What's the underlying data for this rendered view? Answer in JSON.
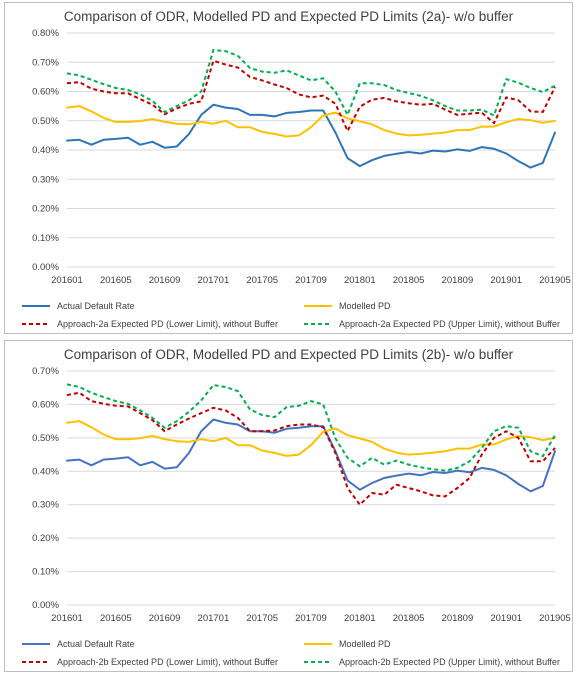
{
  "chart_data": [
    {
      "type": "line",
      "title": "Comparison of ODR, Modelled PD and Expected PD Limits (2a)- w/o buffer",
      "xlabel": "",
      "ylabel": "",
      "x_tick_labels": [
        "201601",
        "201605",
        "201609",
        "201701",
        "201705",
        "201709",
        "201801",
        "201805",
        "201809",
        "201901",
        "201905"
      ],
      "y_tick_labels": [
        "0.00%",
        "0.10%",
        "0.20%",
        "0.30%",
        "0.40%",
        "0.50%",
        "0.60%",
        "0.70%",
        "0.80%"
      ],
      "ylim": [
        0,
        0.8
      ],
      "y_unit": "%",
      "x_count": 41,
      "grid": "horizontal",
      "legend_position": "bottom",
      "series": [
        {
          "name": "Actual Default Rate",
          "color": "#2e75b6",
          "style": "solid",
          "values": [
            0.432,
            0.435,
            0.418,
            0.435,
            0.438,
            0.442,
            0.418,
            0.428,
            0.408,
            0.412,
            0.455,
            0.52,
            0.555,
            0.545,
            0.54,
            0.52,
            0.52,
            0.515,
            0.527,
            0.53,
            0.535,
            0.535,
            0.46,
            0.372,
            0.345,
            0.365,
            0.38,
            0.387,
            0.393,
            0.388,
            0.398,
            0.395,
            0.402,
            0.397,
            0.41,
            0.404,
            0.388,
            0.362,
            0.34,
            0.356,
            0.46
          ]
        },
        {
          "name": "Modelled PD",
          "color": "#ffc000",
          "style": "solid",
          "values": [
            0.545,
            0.55,
            0.532,
            0.51,
            0.496,
            0.496,
            0.499,
            0.506,
            0.496,
            0.49,
            0.488,
            0.496,
            0.49,
            0.5,
            0.478,
            0.478,
            0.462,
            0.455,
            0.446,
            0.45,
            0.478,
            0.518,
            0.528,
            0.508,
            0.498,
            0.488,
            0.468,
            0.456,
            0.45,
            0.452,
            0.456,
            0.46,
            0.468,
            0.468,
            0.48,
            0.48,
            0.495,
            0.506,
            0.502,
            0.493,
            0.5
          ]
        },
        {
          "name": "Approach-2a Expected PD (Lower Limit), without Buffer",
          "color": "#c00000",
          "style": "dashed",
          "values": [
            0.628,
            0.632,
            0.61,
            0.6,
            0.594,
            0.594,
            0.574,
            0.555,
            0.522,
            0.542,
            0.558,
            0.566,
            0.705,
            0.692,
            0.682,
            0.65,
            0.638,
            0.624,
            0.612,
            0.59,
            0.58,
            0.586,
            0.558,
            0.465,
            0.548,
            0.572,
            0.578,
            0.566,
            0.56,
            0.555,
            0.558,
            0.538,
            0.52,
            0.524,
            0.528,
            0.492,
            0.58,
            0.57,
            0.532,
            0.53,
            0.615
          ]
        },
        {
          "name": "Approach-2a Expected PD (Upper Limit), without Buffer",
          "color": "#00b050",
          "style": "dashed",
          "values": [
            0.662,
            0.655,
            0.64,
            0.625,
            0.612,
            0.605,
            0.59,
            0.568,
            0.53,
            0.55,
            0.57,
            0.6,
            0.742,
            0.738,
            0.722,
            0.68,
            0.668,
            0.664,
            0.672,
            0.655,
            0.638,
            0.645,
            0.6,
            0.52,
            0.628,
            0.628,
            0.622,
            0.605,
            0.595,
            0.585,
            0.57,
            0.55,
            0.535,
            0.535,
            0.538,
            0.518,
            0.642,
            0.63,
            0.612,
            0.598,
            0.62
          ]
        }
      ]
    },
    {
      "type": "line",
      "title": "Comparison of ODR, Modelled PD and Expected PD Limits (2b)- w/o buffer",
      "xlabel": "",
      "ylabel": "",
      "x_tick_labels": [
        "201601",
        "201605",
        "201609",
        "201701",
        "201705",
        "201709",
        "201801",
        "201805",
        "201809",
        "201901",
        "201905"
      ],
      "y_tick_labels": [
        "0.00%",
        "0.10%",
        "0.20%",
        "0.30%",
        "0.40%",
        "0.50%",
        "0.60%",
        "0.70%"
      ],
      "ylim": [
        0,
        0.7
      ],
      "y_unit": "%",
      "x_count": 41,
      "grid": "horizontal",
      "legend_position": "bottom",
      "series": [
        {
          "name": "Actual Default Rate",
          "color": "#4472c4",
          "style": "solid",
          "values": [
            0.432,
            0.435,
            0.418,
            0.435,
            0.438,
            0.442,
            0.418,
            0.428,
            0.408,
            0.412,
            0.455,
            0.52,
            0.555,
            0.545,
            0.54,
            0.52,
            0.52,
            0.515,
            0.527,
            0.53,
            0.535,
            0.535,
            0.46,
            0.372,
            0.345,
            0.365,
            0.38,
            0.387,
            0.393,
            0.388,
            0.398,
            0.395,
            0.402,
            0.397,
            0.41,
            0.404,
            0.388,
            0.362,
            0.34,
            0.356,
            0.46
          ]
        },
        {
          "name": "Modelled PD",
          "color": "#ffc000",
          "style": "solid",
          "values": [
            0.545,
            0.55,
            0.532,
            0.51,
            0.496,
            0.496,
            0.499,
            0.506,
            0.496,
            0.49,
            0.488,
            0.496,
            0.49,
            0.5,
            0.478,
            0.478,
            0.462,
            0.455,
            0.446,
            0.45,
            0.478,
            0.518,
            0.528,
            0.508,
            0.498,
            0.488,
            0.468,
            0.456,
            0.45,
            0.452,
            0.456,
            0.46,
            0.468,
            0.468,
            0.48,
            0.48,
            0.495,
            0.506,
            0.502,
            0.493,
            0.5
          ]
        },
        {
          "name": "Approach-2b Expected PD (Lower Limit), without Buffer",
          "color": "#c00000",
          "style": "dashed",
          "values": [
            0.628,
            0.635,
            0.61,
            0.602,
            0.596,
            0.594,
            0.574,
            0.553,
            0.52,
            0.54,
            0.558,
            0.574,
            0.59,
            0.582,
            0.56,
            0.52,
            0.52,
            0.522,
            0.535,
            0.54,
            0.54,
            0.532,
            0.455,
            0.35,
            0.3,
            0.335,
            0.33,
            0.36,
            0.35,
            0.34,
            0.328,
            0.325,
            0.35,
            0.38,
            0.45,
            0.5,
            0.52,
            0.5,
            0.43,
            0.43,
            0.47
          ]
        },
        {
          "name": "Approach-2b Expected PD (Upper Limit), without Buffer",
          "color": "#00b050",
          "style": "dashed",
          "values": [
            0.66,
            0.652,
            0.635,
            0.622,
            0.61,
            0.602,
            0.582,
            0.56,
            0.53,
            0.55,
            0.578,
            0.612,
            0.658,
            0.652,
            0.64,
            0.585,
            0.568,
            0.562,
            0.592,
            0.596,
            0.61,
            0.6,
            0.498,
            0.44,
            0.415,
            0.44,
            0.42,
            0.432,
            0.42,
            0.412,
            0.406,
            0.402,
            0.41,
            0.43,
            0.47,
            0.52,
            0.535,
            0.53,
            0.46,
            0.445,
            0.508
          ]
        }
      ]
    }
  ]
}
